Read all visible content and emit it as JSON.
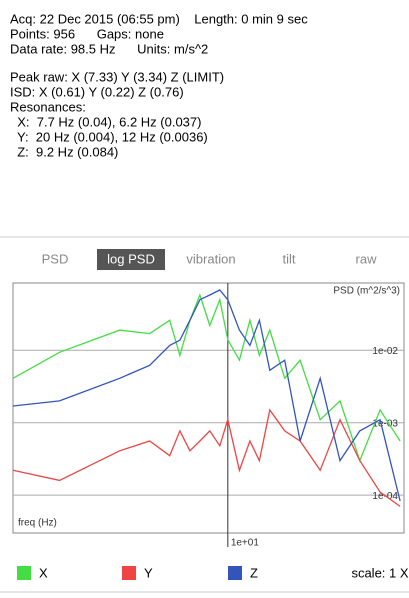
{
  "info": [
    "Acq: 22 Dec 2015 (06:55 pm)    Length: 0 min 9 sec",
    "Points: 956      Gaps: none",
    "Data rate: 98.5 Hz      Units: m/s^2"
  ],
  "details": [
    "Peak raw: X (7.33) Y (3.34) Z (LIMIT)",
    "ISD: X (0.61) Y (0.22) Z (0.76)",
    "Resonances:",
    "  X:  7.7 Hz (0.04), 6.2 Hz (0.037)",
    "  Y:  20 Hz (0.004), 12 Hz (0.0036)",
    "  Z:  9.2 Hz (0.084)"
  ],
  "tabs": [
    "PSD",
    "log PSD",
    "vibration",
    "tilt",
    "raw"
  ],
  "selected_tab": 1,
  "scale": "scale: 1 X",
  "chart_data": {
    "type": "line",
    "y_label": "PSD (m^2/s^3)",
    "x_label": "freq (Hz)",
    "x": [
      1.44,
      2.19,
      3.77,
      4.94,
      5.92,
      6.49,
      7.1,
      7.77,
      8.5,
      9.3,
      10,
      11.1,
      12.2,
      13.3,
      14.6,
      16.7,
      19.2,
      23,
      27.5,
      32.9,
      39.5,
      47.3
    ],
    "series": [
      {
        "name": "X",
        "color": "#44dd44",
        "values": [
          0.0041,
          0.0094,
          0.019,
          0.017,
          0.026,
          0.0085,
          0.026,
          0.058,
          0.022,
          0.05,
          0.014,
          0.0073,
          0.026,
          0.0085,
          0.019,
          0.0041,
          0.0073,
          0.0011,
          0.002,
          0.0003,
          0.0015,
          0.00056
        ]
      },
      {
        "name": "Y",
        "color": "#ee4444",
        "values": [
          0.00022,
          0.00016,
          0.00041,
          0.00056,
          0.00035,
          0.00077,
          0.00041,
          0.00056,
          0.00077,
          0.00048,
          0.0011,
          0.00022,
          0.00056,
          0.0003,
          0.0015,
          0.00077,
          0.00056,
          0.00022,
          0.0011,
          0.0003,
          0.00011,
          7e-05
        ]
      },
      {
        "name": "Z",
        "color": "#3355bb",
        "values": [
          0.0017,
          0.002,
          0.0041,
          0.0062,
          0.0117,
          0.0138,
          0.026,
          0.05,
          0.058,
          0.068,
          0.05,
          0.019,
          0.0117,
          0.026,
          0.0053,
          0.0073,
          0.00056,
          0.0041,
          0.0003,
          0.00077,
          0.0011,
          8.3e-05
        ]
      }
    ],
    "xlim": [
      1.44,
      49
    ],
    "ylim": [
      3e-05,
      0.085
    ],
    "xlog": true,
    "ylog": true,
    "xticks": [
      {
        "value": 10,
        "label": "1e+01"
      }
    ],
    "yticks": [
      {
        "value": 0.01,
        "label": "1e-02"
      },
      {
        "value": 0.001,
        "label": "1e-03"
      },
      {
        "value": 0.0001,
        "label": "1e-04"
      }
    ],
    "grid": true
  }
}
